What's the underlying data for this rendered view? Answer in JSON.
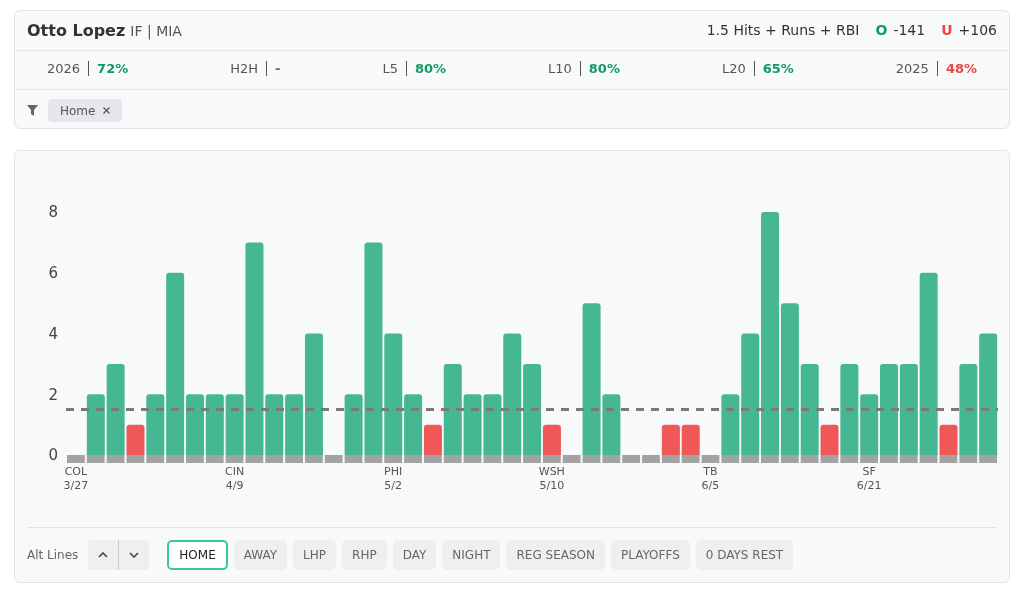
{
  "chart_data": {
    "type": "bar",
    "title": "Otto Lopez",
    "subtitle": "IF | MIA",
    "categories": [
      "COL\n3/27",
      null,
      null,
      null,
      null,
      null,
      null,
      null,
      "CIN\n4/9",
      null,
      null,
      null,
      null,
      null,
      null,
      null,
      "PHI\n5/2",
      null,
      null,
      null,
      null,
      null,
      null,
      null,
      "WSH\n5/10",
      null,
      null,
      null,
      null,
      null,
      null,
      null,
      "TB\n6/5",
      null,
      null,
      null,
      null,
      null,
      null,
      null,
      "SF\n6/21",
      null,
      null,
      null,
      null,
      null,
      null
    ],
    "values": [
      0,
      2,
      3,
      1,
      2,
      6,
      2,
      2,
      2,
      7,
      2,
      2,
      4,
      0,
      2,
      7,
      4,
      2,
      1,
      3,
      2,
      2,
      4,
      3,
      1,
      0,
      5,
      2,
      0,
      0,
      1,
      1,
      0,
      2,
      4,
      8,
      5,
      3,
      1,
      3,
      2,
      3,
      3,
      6,
      1,
      3,
      4
    ],
    "colors": [
      "#a3a3a3",
      "#45b893",
      "#45b893",
      "#f05757",
      "#45b893",
      "#45b893",
      "#45b893",
      "#45b893",
      "#45b893",
      "#45b893",
      "#45b893",
      "#45b893",
      "#45b893",
      "#a3a3a3",
      "#45b893",
      "#45b893",
      "#45b893",
      "#45b893",
      "#f05757",
      "#45b893",
      "#45b893",
      "#45b893",
      "#45b893",
      "#45b893",
      "#f05757",
      "#a3a3a3",
      "#45b893",
      "#45b893",
      "#a3a3a3",
      "#a3a3a3",
      "#f05757",
      "#f05757",
      "#a3a3a3",
      "#45b893",
      "#45b893",
      "#45b893",
      "#45b893",
      "#45b893",
      "#f05757",
      "#45b893",
      "#45b893",
      "#45b893",
      "#45b893",
      "#45b893",
      "#f05757",
      "#45b893",
      "#45b893"
    ],
    "ylim": [
      0,
      8
    ],
    "yticks": [
      0,
      2,
      4,
      6,
      8
    ],
    "grid": false,
    "ref_lines": [
      {
        "axis": "y",
        "value": 1.5,
        "color": "#7a7a7a",
        "line_style": "dashed"
      }
    ],
    "annotations": [
      "1.5 Hits + Runs + RBI",
      "O",
      "-141",
      "U",
      "+106",
      "2026",
      "72%",
      "H2H",
      "-",
      "L5",
      "80%",
      "L10",
      "80%",
      "L20",
      "65%",
      "2025",
      "48%",
      "Home",
      "Alt Lines",
      "HOME",
      "AWAY",
      "LHP",
      "RHP",
      "DAY",
      "NIGHT",
      "REG SEASON",
      "PLAYOFFS",
      "0 DAYS REST"
    ]
  }
}
